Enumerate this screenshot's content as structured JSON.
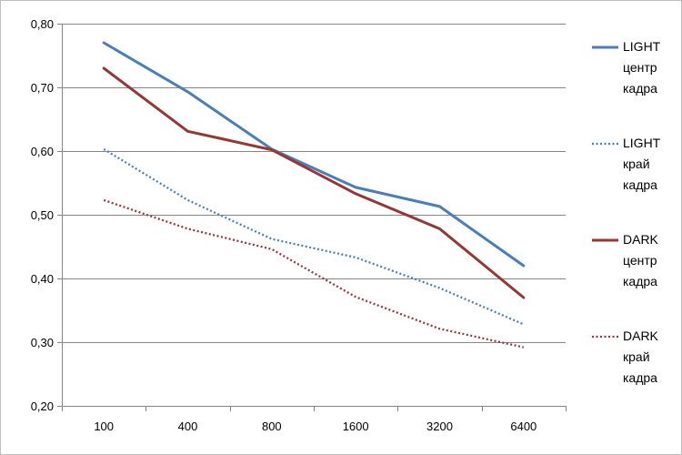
{
  "chart_data": {
    "type": "line",
    "categories": [
      "100",
      "400",
      "800",
      "1600",
      "3200",
      "6400"
    ],
    "ylim": [
      0.2,
      0.8
    ],
    "yticks": [
      0.2,
      0.3,
      0.4,
      0.5,
      0.6,
      0.7,
      0.8
    ],
    "ytick_labels": [
      "0,20",
      "0,30",
      "0,40",
      "0,50",
      "0,60",
      "0,70",
      "0,80"
    ],
    "grid": "horizontal",
    "legend_position": "right",
    "series": [
      {
        "name": "LIGHT центр кадра",
        "legend_lines": [
          "LIGHT",
          "центр",
          "кадра"
        ],
        "values": [
          0.77,
          0.693,
          0.603,
          0.543,
          0.513,
          0.42
        ],
        "color": "#4A7EBB",
        "style": "solid"
      },
      {
        "name": "LIGHT край кадра",
        "legend_lines": [
          "LIGHT",
          "край",
          "кадра"
        ],
        "values": [
          0.603,
          0.523,
          0.462,
          0.433,
          0.385,
          0.328
        ],
        "color": "#4A7EBB",
        "style": "dotted"
      },
      {
        "name": "DARK центр кадра",
        "legend_lines": [
          "DARK",
          "центр",
          "кадра"
        ],
        "values": [
          0.73,
          0.631,
          0.602,
          0.533,
          0.478,
          0.37
        ],
        "color": "#953735",
        "style": "solid"
      },
      {
        "name": "DARK край кадра",
        "legend_lines": [
          "DARK",
          "край",
          "кадра"
        ],
        "values": [
          0.523,
          0.478,
          0.446,
          0.371,
          0.321,
          0.292
        ],
        "color": "#953735",
        "style": "dotted"
      }
    ]
  }
}
